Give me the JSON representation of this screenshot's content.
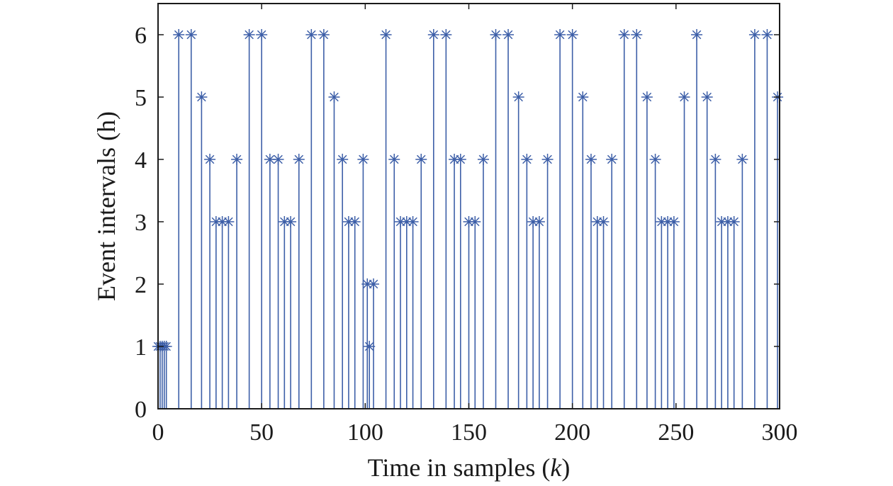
{
  "chart_data": {
    "type": "stem",
    "title": "",
    "xlabel_prefix": "Time in samples (",
    "xlabel_var": "k",
    "xlabel_suffix": ")",
    "ylabel": "Event intervals (h)",
    "xlim": [
      0,
      300
    ],
    "ylim": [
      0,
      6.5
    ],
    "xticks": [
      0,
      50,
      100,
      150,
      200,
      250,
      300
    ],
    "yticks": [
      0,
      1,
      2,
      3,
      4,
      5,
      6
    ],
    "grid": false,
    "marker": "asterisk",
    "color": "#3d5fa8",
    "axis_color": "#1a1a1a",
    "series": [
      {
        "points": [
          [
            0,
            1
          ],
          [
            1,
            1
          ],
          [
            2,
            1
          ],
          [
            3,
            1
          ],
          [
            4,
            1
          ],
          [
            10,
            6
          ],
          [
            16,
            6
          ],
          [
            21,
            5
          ],
          [
            25,
            4
          ],
          [
            28,
            3
          ],
          [
            31,
            3
          ],
          [
            34,
            3
          ],
          [
            38,
            4
          ],
          [
            44,
            6
          ],
          [
            50,
            6
          ],
          [
            54,
            4
          ],
          [
            58,
            4
          ],
          [
            61,
            3
          ],
          [
            64,
            3
          ],
          [
            68,
            4
          ],
          [
            74,
            6
          ],
          [
            80,
            6
          ],
          [
            85,
            5
          ],
          [
            89,
            4
          ],
          [
            92,
            3
          ],
          [
            95,
            3
          ],
          [
            99,
            4
          ],
          [
            101,
            2
          ],
          [
            102,
            1
          ],
          [
            104,
            2
          ],
          [
            110,
            6
          ],
          [
            114,
            4
          ],
          [
            117,
            3
          ],
          [
            120,
            3
          ],
          [
            123,
            3
          ],
          [
            127,
            4
          ],
          [
            133,
            6
          ],
          [
            139,
            6
          ],
          [
            143,
            4
          ],
          [
            146,
            4
          ],
          [
            150,
            3
          ],
          [
            153,
            3
          ],
          [
            157,
            4
          ],
          [
            163,
            6
          ],
          [
            169,
            6
          ],
          [
            174,
            5
          ],
          [
            178,
            4
          ],
          [
            181,
            3
          ],
          [
            184,
            3
          ],
          [
            188,
            4
          ],
          [
            194,
            6
          ],
          [
            200,
            6
          ],
          [
            205,
            5
          ],
          [
            209,
            4
          ],
          [
            212,
            3
          ],
          [
            215,
            3
          ],
          [
            219,
            4
          ],
          [
            225,
            6
          ],
          [
            231,
            6
          ],
          [
            236,
            5
          ],
          [
            240,
            4
          ],
          [
            243,
            3
          ],
          [
            246,
            3
          ],
          [
            249,
            3
          ],
          [
            254,
            5
          ],
          [
            260,
            6
          ],
          [
            265,
            5
          ],
          [
            269,
            4
          ],
          [
            272,
            3
          ],
          [
            275,
            3
          ],
          [
            278,
            3
          ],
          [
            282,
            4
          ],
          [
            288,
            6
          ],
          [
            294,
            6
          ],
          [
            299,
            5
          ]
        ]
      }
    ]
  }
}
